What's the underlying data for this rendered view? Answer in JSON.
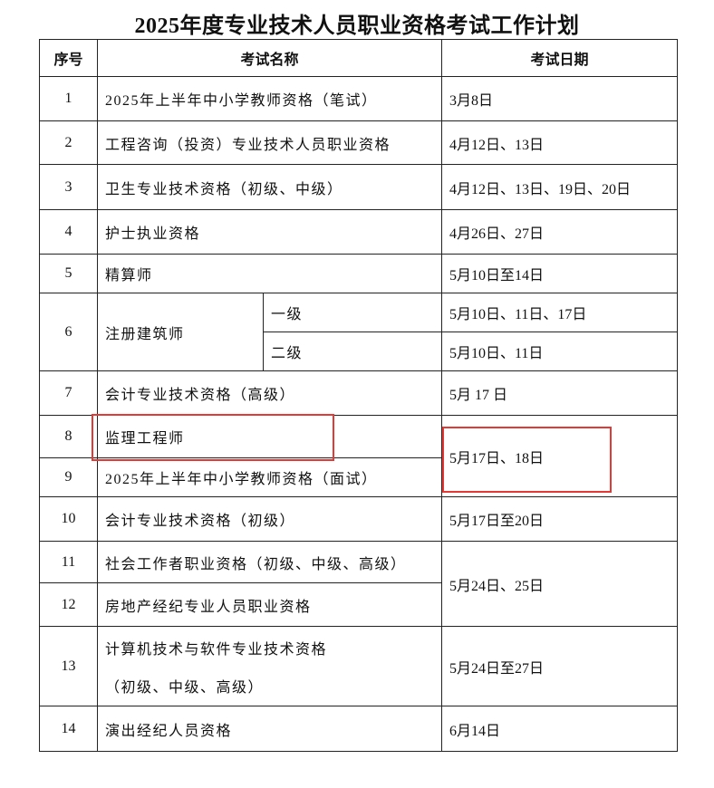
{
  "title": "2025年度专业技术人员职业资格考试工作计划",
  "headers": {
    "seq": "序号",
    "name": "考试名称",
    "date": "考试日期"
  },
  "rows": [
    {
      "seq": "1",
      "name": "2025年上半年中小学教师资格（笔试）",
      "date": "3月8日"
    },
    {
      "seq": "2",
      "name": "工程咨询（投资）专业技术人员职业资格",
      "date": "4月12日、13日"
    },
    {
      "seq": "3",
      "name": "卫生专业技术资格（初级、中级）",
      "date": "4月12日、13日、19日、20日"
    },
    {
      "seq": "4",
      "name": "护士执业资格",
      "date": "4月26日、27日"
    },
    {
      "seq": "5",
      "name": "精算师",
      "date": "5月10日至14日"
    },
    {
      "seq": "6",
      "name": "注册建筑师",
      "sub": [
        {
          "level": "一级",
          "date": "5月10日、11日、17日"
        },
        {
          "level": "二级",
          "date": "5月10日、11日"
        }
      ]
    },
    {
      "seq": "7",
      "name": "会计专业技术资格（高级）",
      "date": "5月 17 日"
    },
    {
      "seq": "8",
      "name": "监理工程师",
      "date": "5月17日、18日"
    },
    {
      "seq": "9",
      "name": "2025年上半年中小学教师资格（面试）"
    },
    {
      "seq": "10",
      "name": "会计专业技术资格（初级）",
      "date": "5月17日至20日"
    },
    {
      "seq": "11",
      "name": "社会工作者职业资格（初级、中级、高级）",
      "date": "5月24日、25日"
    },
    {
      "seq": "12",
      "name": "房地产经纪专业人员职业资格"
    },
    {
      "seq": "13",
      "name": "计算机技术与软件专业技术资格",
      "name2": "（初级、中级、高级）",
      "date": "5月24日至27日"
    },
    {
      "seq": "14",
      "name": "演出经纪人员资格",
      "date": "6月14日"
    }
  ],
  "highlight_color": "#e53935"
}
